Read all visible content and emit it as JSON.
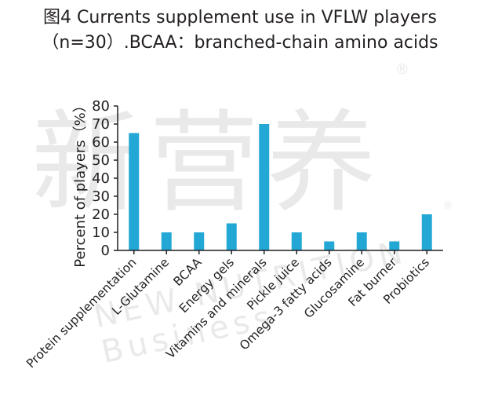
{
  "title_line1": "图4 Currents supplement use in VFLW players",
  "title_line2": "（n=30）.BCAA：branched-chain amino acids",
  "watermark": {
    "cjk": "新营养",
    "latin": "NEW NUTRITION Business",
    "registered": "®"
  },
  "colors": {
    "bar": "#23a8d6",
    "axis": "#231f20",
    "text": "#231f20"
  },
  "chart_data": {
    "type": "bar",
    "title": "图4 Currents supplement use in VFLW players （n=30）.BCAA：branched-chain amino acids",
    "xlabel": "",
    "ylabel": "Percent of players（%）",
    "ylim": [
      0,
      80
    ],
    "yticks": [
      0,
      10,
      20,
      30,
      40,
      50,
      60,
      70,
      80
    ],
    "grid": false,
    "categories": [
      "Protein supplementation",
      "L-Glutamine",
      "BCAA",
      "Energy gels",
      "Vitamins and minerals",
      "Pickle juice",
      "Omega-3 fatty acids",
      "Glucosamine",
      "Fat burner",
      "Probiotics"
    ],
    "values": [
      65,
      10,
      10,
      15,
      70,
      10,
      5,
      10,
      5,
      20
    ]
  }
}
